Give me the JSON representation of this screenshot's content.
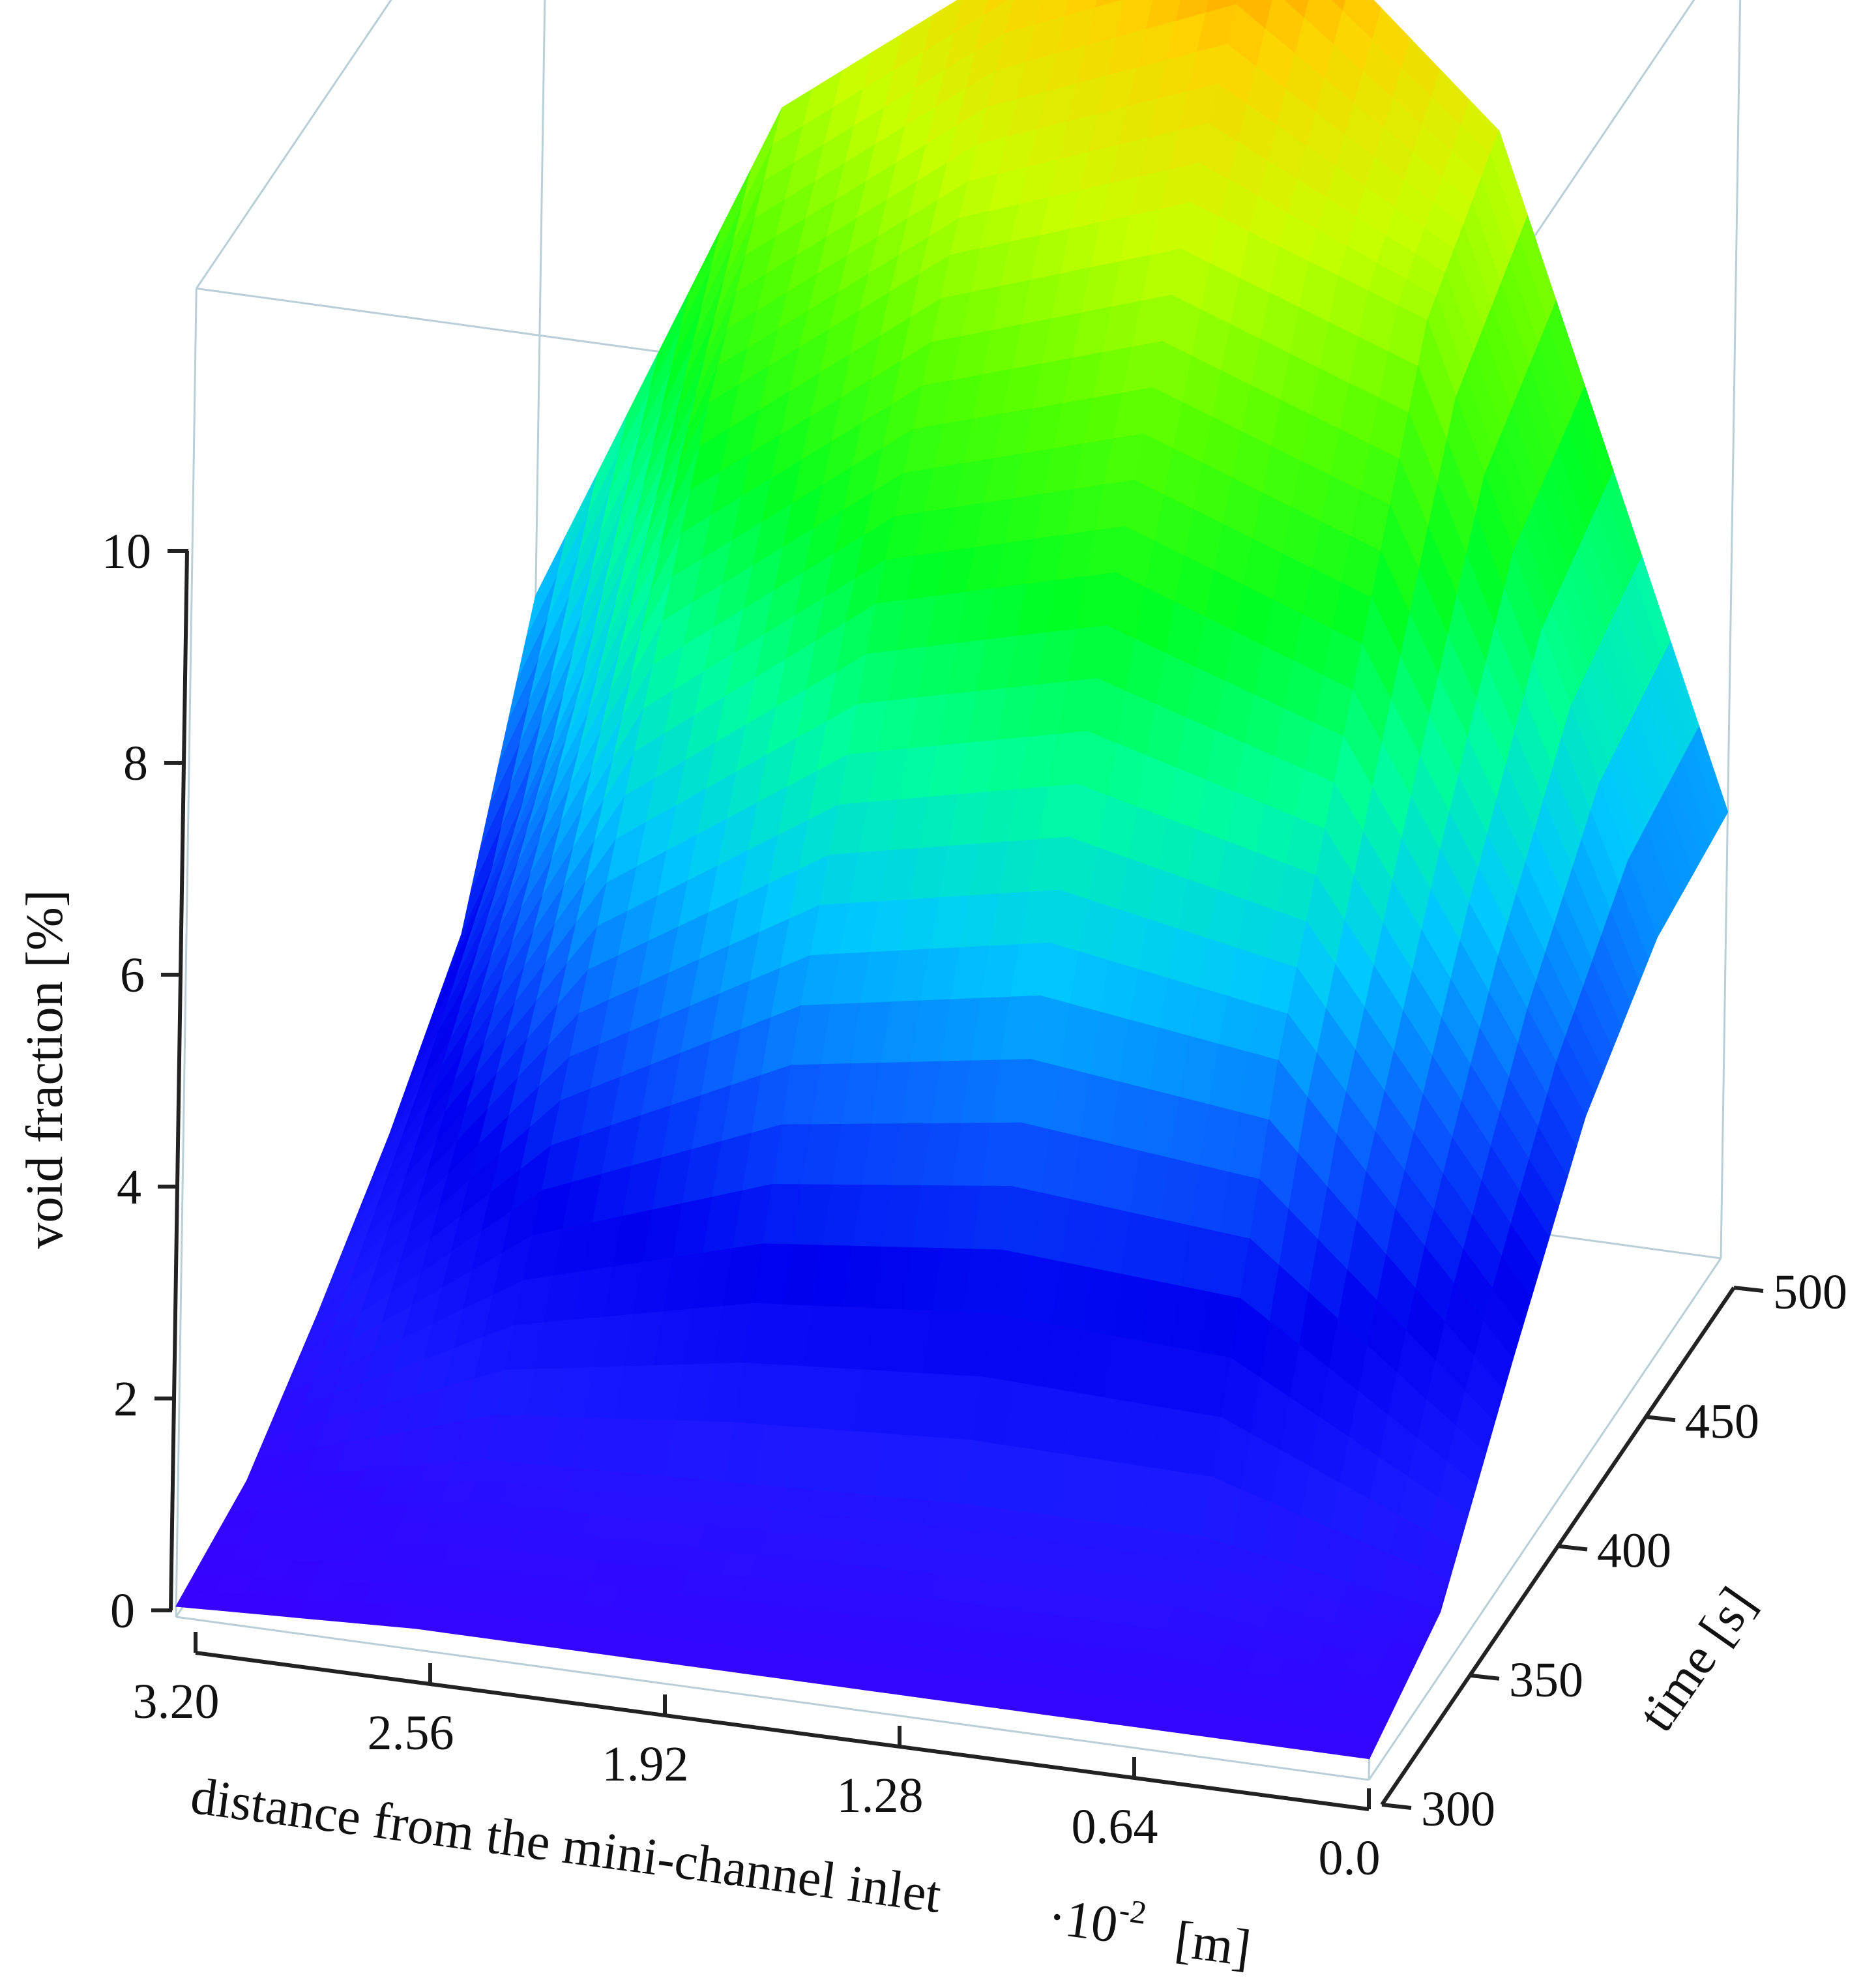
{
  "chart_data": {
    "type": "surface3d",
    "title": "",
    "colormap": [
      "#3a00ff",
      "#1a1aff",
      "#0000f0",
      "#0a5aff",
      "#00c8ff",
      "#00ff9a",
      "#00ff22",
      "#55ff00",
      "#c8ff00",
      "#ffd200",
      "#ff6a00"
    ],
    "x_axis": {
      "label": "distance from the mini-channel inlet",
      "unit_text": "·10",
      "unit_exp": "-2",
      "unit_bracket": "[m]",
      "ticks": [
        "3.20",
        "2.56",
        "1.92",
        "1.28",
        "0.64",
        "0.0"
      ],
      "range": [
        3.2,
        0.0
      ]
    },
    "y_axis": {
      "label": "time  [s]",
      "ticks": [
        "300",
        "350",
        "400",
        "450",
        "500"
      ],
      "range": [
        300,
        500
      ]
    },
    "z_axis": {
      "label": "void fraction   [%]",
      "ticks": [
        "0",
        "2",
        "4",
        "6",
        "8",
        "10"
      ],
      "range": [
        0,
        10
      ]
    },
    "x": [
      3.2,
      2.56,
      1.92,
      1.28,
      0.64,
      0.0
    ],
    "y": [
      300,
      340,
      380,
      420,
      460,
      500
    ],
    "z": [
      [
        0.1,
        0.3,
        0.9,
        1.6,
        2.5,
        4.7
      ],
      [
        0.2,
        0.8,
        3.2,
        5.5,
        7.8,
        9.6
      ],
      [
        0.2,
        0.9,
        4.4,
        7.2,
        9.5,
        11.3
      ],
      [
        0.2,
        1.0,
        4.8,
        7.8,
        10.3,
        12.3
      ],
      [
        0.2,
        1.0,
        4.5,
        7.0,
        9.5,
        10.3
      ],
      [
        0.2,
        0.6,
        2.0,
        3.3,
        4.0,
        4.2
      ]
    ]
  }
}
